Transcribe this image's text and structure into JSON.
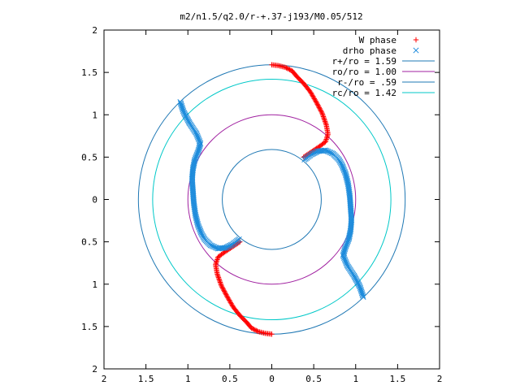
{
  "chart_data": {
    "type": "scatter",
    "title": "m2/n1.5/q2.0/r-+.37-j193/M0.05/512",
    "xlabel": "",
    "ylabel": "",
    "xlim": [
      -2,
      2
    ],
    "ylim": [
      -2,
      2
    ],
    "x_tick_values": [
      -2,
      -1.5,
      -1,
      -0.5,
      0,
      0.5,
      1,
      1.5,
      2
    ],
    "x_tick_labels": [
      "2",
      "1.5",
      "1",
      "0.5",
      "0",
      "0.5",
      "1",
      "1.5",
      "2"
    ],
    "y_tick_values": [
      2,
      1.5,
      1,
      0.5,
      0,
      -0.5,
      -1,
      -1.5,
      -2
    ],
    "y_tick_labels": [
      "2",
      "1.5",
      "1",
      "0.5",
      "0",
      "0.5",
      "1",
      "1.5",
      "2"
    ],
    "grid": false,
    "legend_position": "top-right",
    "series": [
      {
        "name": "W phase",
        "marker": "plus",
        "color": "#ff0000",
        "arms": [
          [
            [
              0.0,
              1.59
            ],
            [
              0.08,
              1.58
            ],
            [
              0.16,
              1.56
            ],
            [
              0.24,
              1.52
            ],
            [
              0.3,
              1.45
            ],
            [
              0.38,
              1.37
            ],
            [
              0.46,
              1.27
            ],
            [
              0.53,
              1.15
            ],
            [
              0.6,
              1.02
            ],
            [
              0.65,
              0.88
            ],
            [
              0.67,
              0.77
            ],
            [
              0.64,
              0.68
            ],
            [
              0.56,
              0.62
            ],
            [
              0.47,
              0.56
            ],
            [
              0.38,
              0.5
            ]
          ],
          [
            [
              0.0,
              -1.59
            ],
            [
              -0.08,
              -1.58
            ],
            [
              -0.16,
              -1.56
            ],
            [
              -0.24,
              -1.52
            ],
            [
              -0.3,
              -1.45
            ],
            [
              -0.38,
              -1.37
            ],
            [
              -0.46,
              -1.27
            ],
            [
              -0.53,
              -1.15
            ],
            [
              -0.6,
              -1.02
            ],
            [
              -0.65,
              -0.88
            ],
            [
              -0.67,
              -0.77
            ],
            [
              -0.64,
              -0.68
            ],
            [
              -0.56,
              -0.62
            ],
            [
              -0.47,
              -0.56
            ],
            [
              -0.38,
              -0.5
            ]
          ]
        ]
      },
      {
        "name": "drho phase",
        "marker": "cross",
        "color": "#1e8cdc",
        "arms": [
          [
            [
              -1.09,
              1.15
            ],
            [
              -1.05,
              1.03
            ],
            [
              -0.98,
              0.9
            ],
            [
              -0.9,
              0.78
            ],
            [
              -0.85,
              0.66
            ],
            [
              -0.88,
              0.56
            ],
            [
              -0.92,
              0.46
            ],
            [
              -0.94,
              0.36
            ],
            [
              -0.95,
              0.24
            ],
            [
              -0.94,
              0.1
            ],
            [
              -0.93,
              -0.04
            ],
            [
              -0.91,
              -0.18
            ],
            [
              -0.88,
              -0.3
            ],
            [
              -0.84,
              -0.4
            ],
            [
              -0.8,
              -0.47
            ],
            [
              -0.73,
              -0.54
            ],
            [
              -0.64,
              -0.58
            ],
            [
              -0.55,
              -0.57
            ],
            [
              -0.47,
              -0.53
            ],
            [
              -0.39,
              -0.47
            ]
          ],
          [
            [
              1.09,
              -1.15
            ],
            [
              1.05,
              -1.03
            ],
            [
              0.98,
              -0.9
            ],
            [
              0.9,
              -0.78
            ],
            [
              0.85,
              -0.66
            ],
            [
              0.88,
              -0.56
            ],
            [
              0.92,
              -0.46
            ],
            [
              0.94,
              -0.36
            ],
            [
              0.95,
              -0.24
            ],
            [
              0.94,
              -0.1
            ],
            [
              0.93,
              0.04
            ],
            [
              0.91,
              0.18
            ],
            [
              0.88,
              0.3
            ],
            [
              0.84,
              0.4
            ],
            [
              0.8,
              0.47
            ],
            [
              0.73,
              0.54
            ],
            [
              0.64,
              0.58
            ],
            [
              0.55,
              0.57
            ],
            [
              0.47,
              0.53
            ],
            [
              0.39,
              0.47
            ]
          ]
        ]
      },
      {
        "name": "r+/ro = 1.59",
        "type": "circle",
        "radius": 1.59,
        "color": "#1f78b4"
      },
      {
        "name": "ro/ro = 1.00",
        "type": "circle",
        "radius": 1.0,
        "color": "#a020a0"
      },
      {
        "name": "r-/ro = .59",
        "type": "circle",
        "radius": 0.59,
        "color": "#1f78b4"
      },
      {
        "name": "rc/ro = 1.42",
        "type": "circle",
        "radius": 1.42,
        "color": "#00c8c8"
      }
    ]
  }
}
